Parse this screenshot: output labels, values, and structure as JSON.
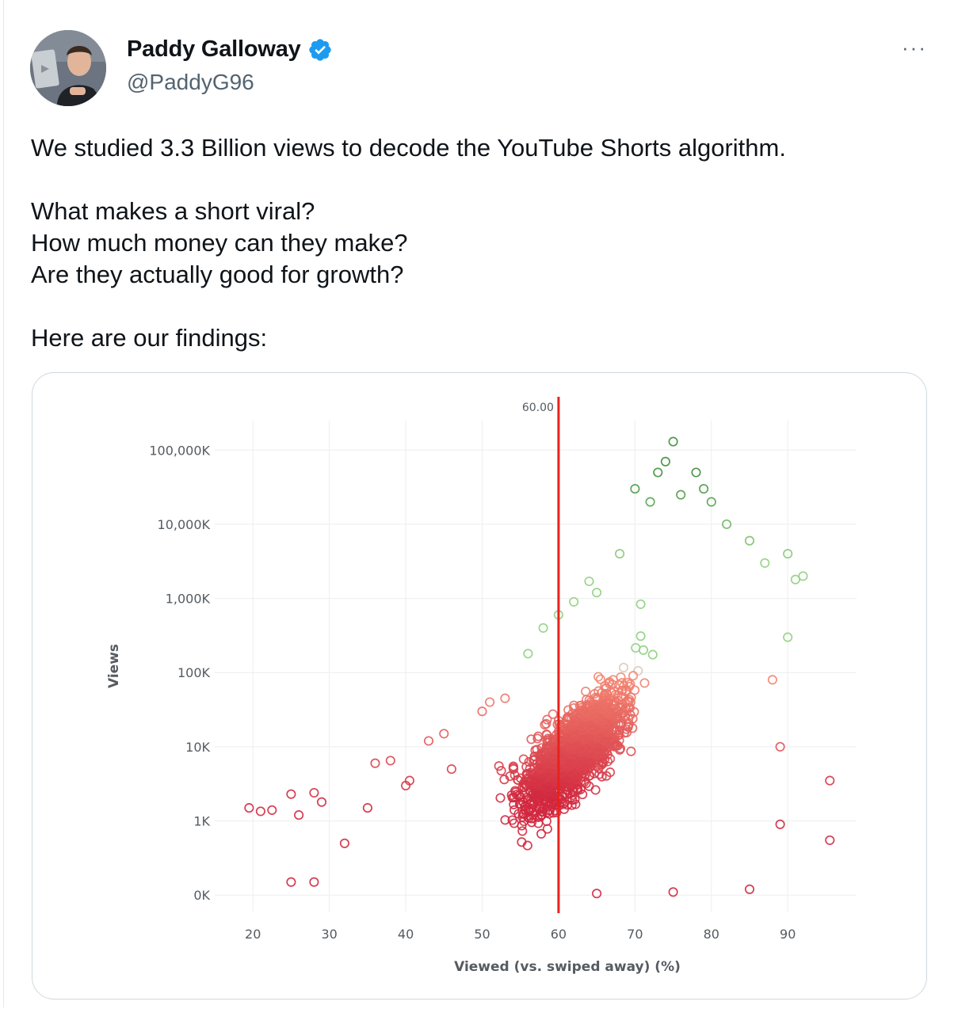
{
  "author": {
    "display_name": "Paddy Galloway",
    "handle": "@PaddyG96",
    "verified": true,
    "avatar_icon": "avatar-photo"
  },
  "menu": {
    "more_label": "···"
  },
  "tweet": {
    "lines": [
      "We studied 3.3 Billion views to decode the YouTube Shorts algorithm.",
      "",
      "What makes a short viral?",
      "How much money can they make?",
      "Are they actually good for growth?",
      "",
      "Here are our findings:"
    ]
  },
  "colors": {
    "accent_verified": "#1d9bf0",
    "low_views": "#d1283f",
    "mid_views": "#f58a74",
    "high_views": "#8fd07e",
    "top_views": "#3c8f3a",
    "reference_line": "#e8221b"
  },
  "chart_data": {
    "type": "scatter",
    "title": "",
    "xlabel": "Viewed (vs. swiped away) (%)",
    "ylabel": "Views",
    "x_ticks": [
      20,
      30,
      40,
      50,
      60,
      70,
      80,
      90
    ],
    "y_ticks": [
      {
        "label": "0K",
        "value": 100
      },
      {
        "label": "1K",
        "value": 1000
      },
      {
        "label": "10K",
        "value": 10000
      },
      {
        "label": "100K",
        "value": 100000
      },
      {
        "label": "1,000K",
        "value": 1000000
      },
      {
        "label": "10,000K",
        "value": 10000000
      },
      {
        "label": "100,000K",
        "value": 100000000
      }
    ],
    "xlim": [
      15,
      99
    ],
    "y_scale": "log",
    "ylim": [
      60,
      250000000
    ],
    "grid": true,
    "reference_line": {
      "x": 60,
      "label": "60.00"
    },
    "marker": "hollow-circle",
    "color_by": "views",
    "sample_points": [
      {
        "x": 19.5,
        "y": 1500
      },
      {
        "x": 21,
        "y": 1350
      },
      {
        "x": 22.5,
        "y": 1400
      },
      {
        "x": 25,
        "y": 2300
      },
      {
        "x": 26,
        "y": 1200
      },
      {
        "x": 28,
        "y": 2400
      },
      {
        "x": 29,
        "y": 1800
      },
      {
        "x": 25,
        "y": 150
      },
      {
        "x": 28,
        "y": 150
      },
      {
        "x": 32,
        "y": 500
      },
      {
        "x": 35,
        "y": 1500
      },
      {
        "x": 36,
        "y": 6000
      },
      {
        "x": 38,
        "y": 6500
      },
      {
        "x": 40,
        "y": 3000
      },
      {
        "x": 40.5,
        "y": 3500
      },
      {
        "x": 43,
        "y": 12000
      },
      {
        "x": 45,
        "y": 15000
      },
      {
        "x": 46,
        "y": 5000
      },
      {
        "x": 50,
        "y": 30000
      },
      {
        "x": 51,
        "y": 40000
      },
      {
        "x": 53,
        "y": 45000
      },
      {
        "x": 56,
        "y": 180000
      },
      {
        "x": 58,
        "y": 400000
      },
      {
        "x": 60,
        "y": 600000
      },
      {
        "x": 62,
        "y": 900000
      },
      {
        "x": 64,
        "y": 1700000
      },
      {
        "x": 65,
        "y": 1200000
      },
      {
        "x": 68,
        "y": 4000000
      },
      {
        "x": 70,
        "y": 30000000
      },
      {
        "x": 72,
        "y": 20000000
      },
      {
        "x": 73,
        "y": 50000000
      },
      {
        "x": 74,
        "y": 70000000
      },
      {
        "x": 75,
        "y": 130000000
      },
      {
        "x": 76,
        "y": 25000000
      },
      {
        "x": 78,
        "y": 50000000
      },
      {
        "x": 79,
        "y": 30000000
      },
      {
        "x": 80,
        "y": 20000000
      },
      {
        "x": 82,
        "y": 10000000
      },
      {
        "x": 85,
        "y": 6000000
      },
      {
        "x": 87,
        "y": 3000000
      },
      {
        "x": 90,
        "y": 4000000
      },
      {
        "x": 91,
        "y": 1800000
      },
      {
        "x": 92,
        "y": 2000000
      },
      {
        "x": 90,
        "y": 300000
      },
      {
        "x": 88,
        "y": 80000
      },
      {
        "x": 89,
        "y": 10000
      },
      {
        "x": 95.5,
        "y": 3500
      },
      {
        "x": 95.5,
        "y": 550
      },
      {
        "x": 89,
        "y": 900
      },
      {
        "x": 85,
        "y": 120
      },
      {
        "x": 75,
        "y": 110
      },
      {
        "x": 65,
        "y": 105
      }
    ]
  }
}
